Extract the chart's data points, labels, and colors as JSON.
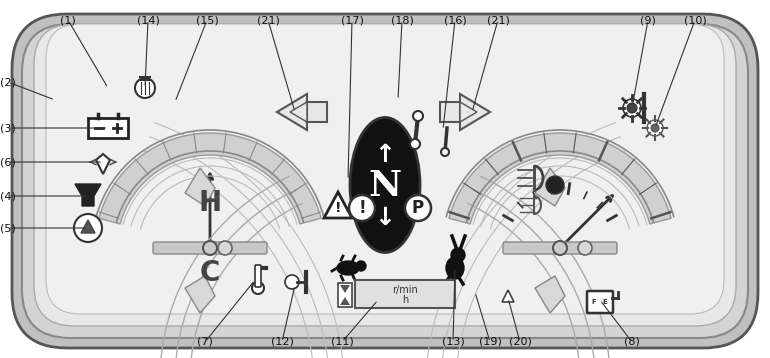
{
  "bg_color": "#ffffff",
  "panel_outer": "#cccccc",
  "panel_mid": "#d8d8d8",
  "panel_inner": "#ebebeb",
  "gauge_arc": "#c8c8c8",
  "dark": "#111111",
  "mid_gray": "#666666",
  "light_gray": "#aaaaaa",
  "top_labels": [
    [
      "1",
      108,
      88,
      68,
      20
    ],
    [
      "14",
      145,
      88,
      148,
      20
    ],
    [
      "15",
      175,
      102,
      207,
      20
    ],
    [
      "21",
      295,
      112,
      268,
      20
    ],
    [
      "17",
      348,
      180,
      352,
      20
    ],
    [
      "18",
      398,
      100,
      402,
      20
    ],
    [
      "16",
      443,
      130,
      455,
      20
    ],
    [
      "21",
      472,
      112,
      498,
      20
    ],
    [
      "9",
      632,
      108,
      648,
      20
    ],
    [
      "10",
      655,
      128,
      695,
      20
    ]
  ],
  "left_labels": [
    [
      "2",
      55,
      100,
      8,
      82
    ],
    [
      "3",
      108,
      128,
      8,
      128
    ],
    [
      "6",
      103,
      162,
      8,
      162
    ],
    [
      "4",
      88,
      196,
      8,
      196
    ],
    [
      "5",
      88,
      228,
      8,
      228
    ]
  ],
  "bot_labels": [
    [
      "7",
      255,
      280,
      205,
      342
    ],
    [
      "12",
      295,
      285,
      282,
      342
    ],
    [
      "11",
      378,
      300,
      342,
      342
    ],
    [
      "13",
      455,
      268,
      453,
      342
    ],
    [
      "19",
      475,
      292,
      490,
      342
    ],
    [
      "20",
      508,
      298,
      520,
      342
    ],
    [
      "8",
      600,
      300,
      632,
      342
    ]
  ]
}
